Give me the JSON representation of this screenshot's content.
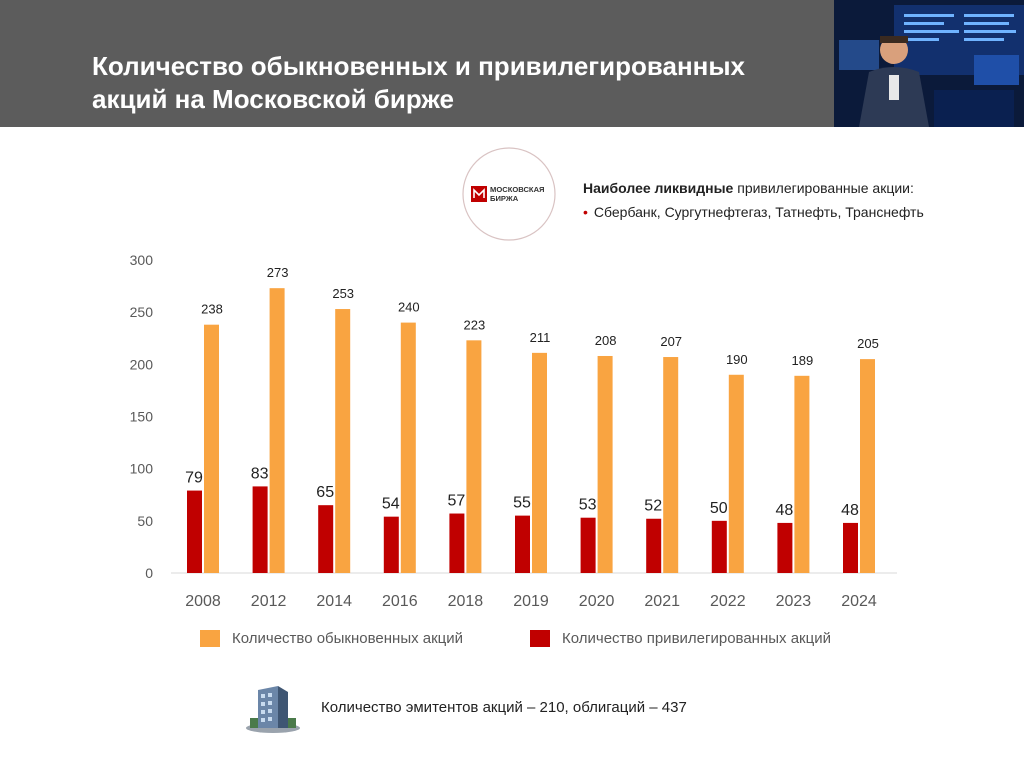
{
  "header": {
    "title": "Количество обыкновенных и привилегированных акций на Московской бирже",
    "photo_icon": "stock-exchange-trader-photo"
  },
  "logo": {
    "text_line1": "МОСКОВСКАЯ",
    "text_line2": "БИРЖА",
    "icon": "moex-logo-icon"
  },
  "liquid_box": {
    "heading_bold": "Наиболее ликвидные",
    "heading_rest": "привилегированные акции:",
    "companies": "Сбербанк, Сургутнефтегаз, Татнефть, Транснефть"
  },
  "colors": {
    "orange": "#f9a441",
    "red": "#c00000",
    "header_bg": "#5c5c5c"
  },
  "chart_data": {
    "type": "bar",
    "categories": [
      "2008",
      "2012",
      "2014",
      "2016",
      "2018",
      "2019",
      "2020",
      "2021",
      "2022",
      "2023",
      "2024"
    ],
    "series": [
      {
        "name": "Количество привилегированных акций",
        "values": [
          79,
          83,
          65,
          54,
          57,
          55,
          53,
          52,
          50,
          48,
          48
        ]
      },
      {
        "name": "Количество обыкновенных акций",
        "values": [
          238,
          273,
          253,
          240,
          223,
          211,
          208,
          207,
          190,
          189,
          205
        ]
      }
    ],
    "legend_order": [
      "Количество обыкновенных акций",
      "Количество привилегированных акций"
    ],
    "yticks": [
      "0",
      "50",
      "100",
      "150",
      "200",
      "250",
      "300"
    ],
    "ylim": [
      0,
      300
    ],
    "title": "",
    "xlabel": "",
    "ylabel": "",
    "grid": false,
    "legend_position": "bottom"
  },
  "footer": {
    "icon": "office-building-icon",
    "text": "Количество эмитентов акций – 210, облигаций – 437"
  }
}
